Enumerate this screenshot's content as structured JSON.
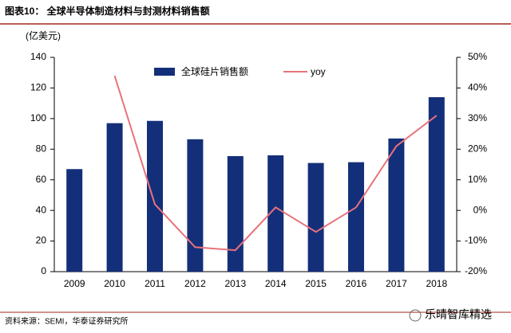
{
  "chart_data": {
    "type": "bar",
    "title": "图表10：  全球半导体制造材料与封测材料销售额",
    "y_label": "(亿美元)",
    "source": "资料来源：SEMI，华泰证券研究所",
    "watermark": "乐晴智库精选",
    "categories": [
      "2009",
      "2010",
      "2011",
      "2012",
      "2013",
      "2014",
      "2015",
      "2016",
      "2017",
      "2018"
    ],
    "series": [
      {
        "name": "全球硅片销售额",
        "type": "bar",
        "color": "#142f7a",
        "values": [
          67,
          97,
          98.5,
          86.5,
          75.5,
          76,
          71,
          71.5,
          87,
          114
        ]
      },
      {
        "name": "yoy",
        "type": "line",
        "axis": "y2",
        "color": "#e8727a",
        "values": [
          null,
          44,
          2,
          -12,
          -13,
          1,
          -7,
          1,
          21,
          31
        ]
      }
    ],
    "ylim": [
      0,
      140
    ],
    "yticks": [
      0,
      20,
      40,
      60,
      80,
      100,
      120,
      140
    ],
    "y2lim": [
      -20,
      50
    ],
    "y2ticks": [
      {
        "value": -20,
        "label": "-20%"
      },
      {
        "value": -10,
        "label": "-10%"
      },
      {
        "value": 0,
        "label": "0%"
      },
      {
        "value": 10,
        "label": "10%"
      },
      {
        "value": 20,
        "label": "20%"
      },
      {
        "value": 30,
        "label": "30%"
      },
      {
        "value": 40,
        "label": "40%"
      },
      {
        "value": 50,
        "label": "50%"
      }
    ],
    "grid": false
  }
}
